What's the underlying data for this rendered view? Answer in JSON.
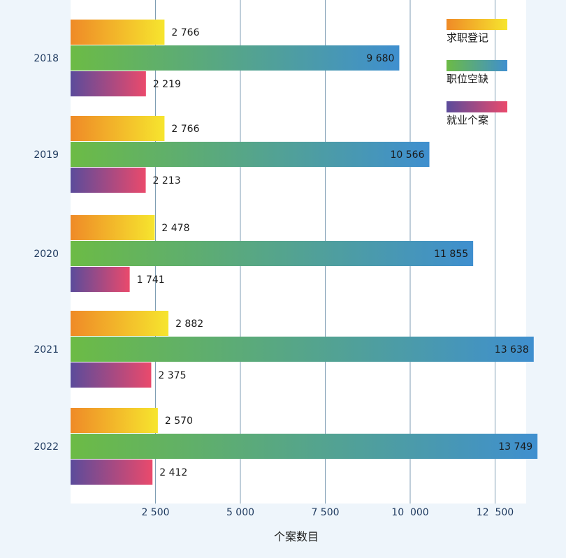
{
  "chart_data": {
    "type": "bar",
    "orientation": "horizontal",
    "categories": [
      "2018",
      "2019",
      "2020",
      "2021",
      "2022"
    ],
    "series": [
      {
        "name": "求职登记",
        "values": [
          2766,
          2766,
          2478,
          2882,
          2570
        ],
        "labels": [
          "2 766",
          "2 766",
          "2 478",
          "2 882",
          "2 570"
        ],
        "gradient": [
          "#ef8a27",
          "#f6e52e"
        ]
      },
      {
        "name": "职位空缺",
        "values": [
          9680,
          10566,
          11855,
          13638,
          13749
        ],
        "labels": [
          "9 680",
          "10 566",
          "11 855",
          "13 638",
          "13 749"
        ],
        "gradient": [
          "#6cbb45",
          "#3f8fcf"
        ]
      },
      {
        "name": "就业个案",
        "values": [
          2219,
          2213,
          1741,
          2375,
          2412
        ],
        "labels": [
          "2 219",
          "2 213",
          "1 741",
          "2 375",
          "2 412"
        ],
        "gradient": [
          "#5b4b9b",
          "#ea4a6c"
        ]
      }
    ],
    "xlabel": "个案数目",
    "ylabel": "",
    "xlim": [
      0,
      13900
    ],
    "xticks": [
      2500,
      5000,
      7500,
      10000,
      12500
    ],
    "xtick_labels": [
      "2 500",
      "5 000",
      "7 500",
      "10  000",
      "12  500"
    ],
    "grid": "vertical",
    "legend_position": "top-right",
    "colors": {
      "background": "#eef5fb",
      "plot_background": "#ffffff",
      "grid": "#7f9eb4",
      "text": "#1a1a1a",
      "axis_text": "#1f3a5f"
    }
  }
}
